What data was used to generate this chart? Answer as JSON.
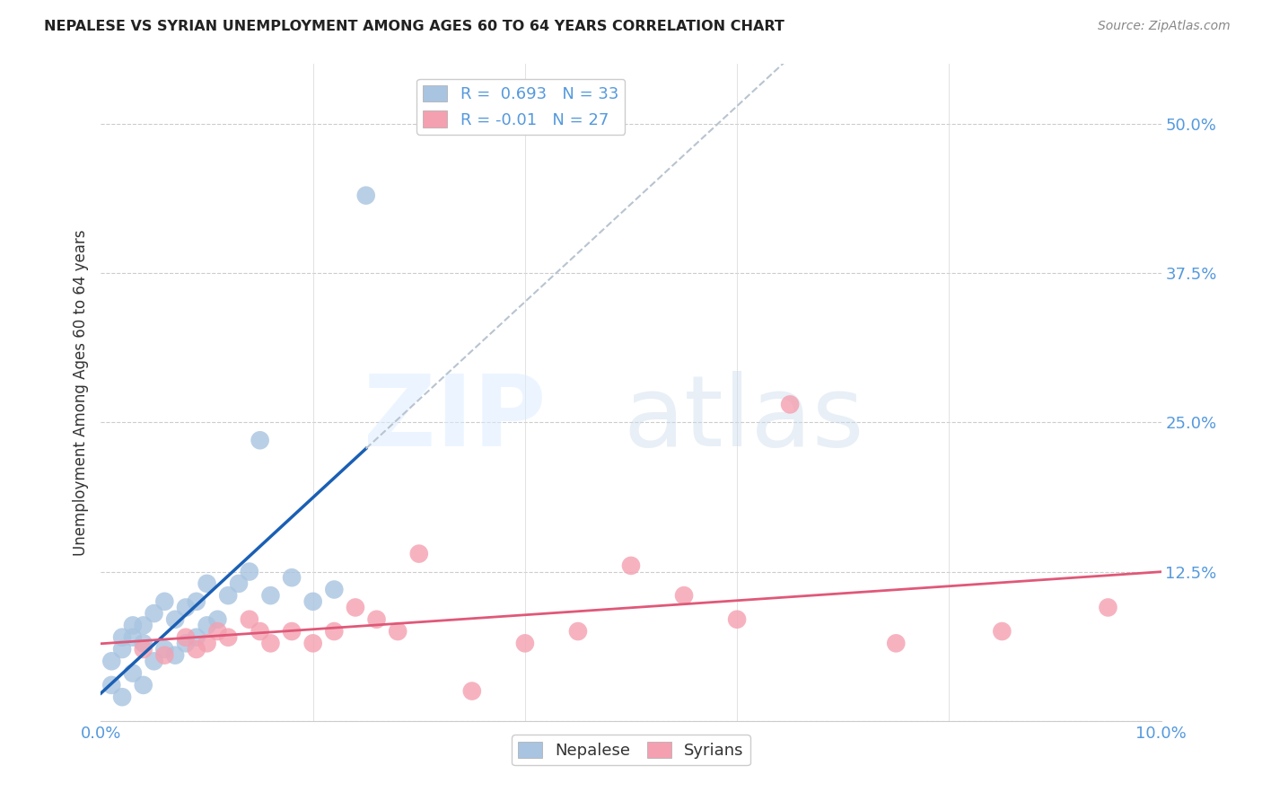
{
  "title": "NEPALESE VS SYRIAN UNEMPLOYMENT AMONG AGES 60 TO 64 YEARS CORRELATION CHART",
  "source": "Source: ZipAtlas.com",
  "ylabel": "Unemployment Among Ages 60 to 64 years",
  "xlim": [
    0.0,
    0.1
  ],
  "ylim": [
    0.0,
    0.55
  ],
  "yticks": [
    0.0,
    0.125,
    0.25,
    0.375,
    0.5
  ],
  "ytick_labels": [
    "",
    "12.5%",
    "25.0%",
    "37.5%",
    "50.0%"
  ],
  "xtick_positions": [
    0.0,
    0.02,
    0.04,
    0.06,
    0.08,
    0.1
  ],
  "nepalese_R": 0.693,
  "nepalese_N": 33,
  "syrian_R": -0.01,
  "syrian_N": 27,
  "nepalese_color": "#a8c4e0",
  "syrian_color": "#f4a0b0",
  "nepalese_line_color": "#1a5fb4",
  "syrian_line_color": "#e05878",
  "trendline_dashed_color": "#b8c4d0",
  "nepalese_x": [
    0.001,
    0.001,
    0.002,
    0.002,
    0.002,
    0.003,
    0.003,
    0.003,
    0.004,
    0.004,
    0.004,
    0.005,
    0.005,
    0.006,
    0.006,
    0.007,
    0.007,
    0.008,
    0.008,
    0.009,
    0.009,
    0.01,
    0.01,
    0.011,
    0.012,
    0.013,
    0.014,
    0.015,
    0.016,
    0.018,
    0.02,
    0.022,
    0.025
  ],
  "nepalese_y": [
    0.03,
    0.05,
    0.02,
    0.06,
    0.07,
    0.04,
    0.07,
    0.08,
    0.03,
    0.065,
    0.08,
    0.05,
    0.09,
    0.06,
    0.1,
    0.055,
    0.085,
    0.065,
    0.095,
    0.07,
    0.1,
    0.08,
    0.115,
    0.085,
    0.105,
    0.115,
    0.125,
    0.235,
    0.105,
    0.12,
    0.1,
    0.11,
    0.44
  ],
  "syrian_x": [
    0.004,
    0.006,
    0.008,
    0.009,
    0.01,
    0.011,
    0.012,
    0.014,
    0.015,
    0.016,
    0.018,
    0.02,
    0.022,
    0.024,
    0.026,
    0.028,
    0.03,
    0.035,
    0.04,
    0.045,
    0.05,
    0.055,
    0.06,
    0.065,
    0.075,
    0.085,
    0.095
  ],
  "syrian_y": [
    0.06,
    0.055,
    0.07,
    0.06,
    0.065,
    0.075,
    0.07,
    0.085,
    0.075,
    0.065,
    0.075,
    0.065,
    0.075,
    0.095,
    0.085,
    0.075,
    0.14,
    0.025,
    0.065,
    0.075,
    0.13,
    0.105,
    0.085,
    0.265,
    0.065,
    0.075,
    0.095
  ]
}
